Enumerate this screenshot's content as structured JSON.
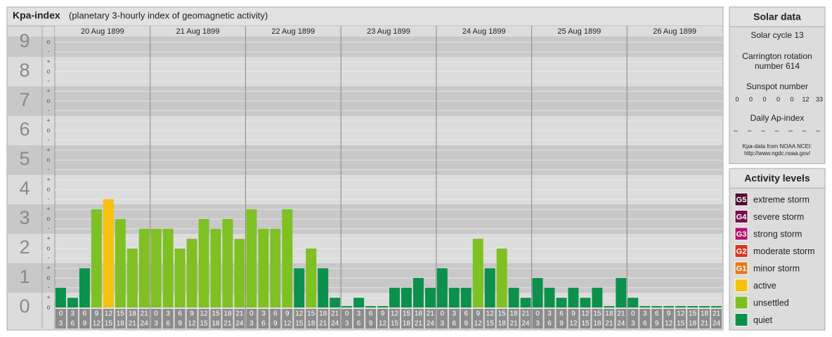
{
  "chart_data": {
    "type": "bar",
    "title": "Kpa-index",
    "subtitle": "(planetary 3-hourly index of geomagnetic activity)",
    "days": [
      "20 Aug 1899",
      "21 Aug 1899",
      "22 Aug 1899",
      "23 Aug 1899",
      "24 Aug 1899",
      "25 Aug 1899",
      "26 Aug 1899"
    ],
    "intervals": [
      [
        "0",
        "3"
      ],
      [
        "3",
        "6"
      ],
      [
        "6",
        "9"
      ],
      [
        "9",
        "12"
      ],
      [
        "12",
        "15"
      ],
      [
        "15",
        "18"
      ],
      [
        "18",
        "21"
      ],
      [
        "21",
        "24"
      ]
    ],
    "values": [
      0.67,
      0.33,
      1.33,
      3.33,
      3.67,
      3,
      2,
      2.67,
      2.67,
      2.67,
      2,
      2.33,
      3,
      2.67,
      3,
      2.33,
      3.33,
      2.67,
      2.67,
      3.33,
      1.33,
      2,
      1.33,
      0.33,
      0,
      0.33,
      0,
      0,
      0.67,
      0.67,
      1,
      0.67,
      1.33,
      0.67,
      0.67,
      2.33,
      1.33,
      2,
      0.67,
      0.33,
      1,
      0.67,
      0.33,
      0.67,
      0.33,
      0.67,
      0,
      1,
      0.33,
      0,
      0,
      0,
      0,
      0,
      0,
      0
    ],
    "levels": [
      "quiet",
      "quiet",
      "quiet",
      "unsettled",
      "active",
      "unsettled",
      "unsettled",
      "unsettled",
      "unsettled",
      "unsettled",
      "unsettled",
      "unsettled",
      "unsettled",
      "unsettled",
      "unsettled",
      "unsettled",
      "unsettled",
      "unsettled",
      "unsettled",
      "unsettled",
      "quiet",
      "unsettled",
      "quiet",
      "quiet",
      "quiet",
      "quiet",
      "quiet",
      "quiet",
      "quiet",
      "quiet",
      "quiet",
      "quiet",
      "quiet",
      "quiet",
      "quiet",
      "unsettled",
      "quiet",
      "unsettled",
      "quiet",
      "quiet",
      "quiet",
      "quiet",
      "quiet",
      "quiet",
      "quiet",
      "quiet",
      "quiet",
      "quiet",
      "quiet",
      "quiet",
      "quiet",
      "quiet",
      "quiet",
      "quiet",
      "quiet",
      "quiet"
    ],
    "ylim": [
      0,
      9.19
    ],
    "yticks": [
      0,
      1,
      2,
      3,
      4,
      5,
      6,
      7,
      8,
      9
    ],
    "minor_ticks": [
      {
        "value": 0,
        "label": "o"
      },
      {
        "value": 0.33,
        "label": "+"
      },
      {
        "value": 0.67,
        "label": "-"
      },
      {
        "value": 1,
        "label": "o"
      },
      {
        "value": 1.33,
        "label": "+"
      },
      {
        "value": 1.67,
        "label": "-"
      },
      {
        "value": 2,
        "label": "o"
      },
      {
        "value": 2.33,
        "label": "+"
      },
      {
        "value": 2.67,
        "label": "-"
      },
      {
        "value": 3,
        "label": "o"
      },
      {
        "value": 3.33,
        "label": "+"
      },
      {
        "value": 3.67,
        "label": "-"
      },
      {
        "value": 4,
        "label": "o"
      },
      {
        "value": 4.33,
        "label": "+"
      },
      {
        "value": 4.67,
        "label": "-"
      },
      {
        "value": 5,
        "label": "o"
      },
      {
        "value": 5.33,
        "label": "+"
      },
      {
        "value": 5.67,
        "label": "-"
      },
      {
        "value": 6,
        "label": "o"
      },
      {
        "value": 6.33,
        "label": "+"
      },
      {
        "value": 6.67,
        "label": "-"
      },
      {
        "value": 7,
        "label": "o"
      },
      {
        "value": 7.33,
        "label": "+"
      },
      {
        "value": 7.67,
        "label": "-"
      },
      {
        "value": 8,
        "label": "o"
      },
      {
        "value": 8.33,
        "label": "+"
      },
      {
        "value": 8.67,
        "label": "-"
      },
      {
        "value": 9,
        "label": "o"
      }
    ],
    "legend": {
      "title": "Activity levels",
      "items": [
        {
          "badge": "G5",
          "name": "extreme storm",
          "color": "#4b0a2e"
        },
        {
          "badge": "G4",
          "name": "severe storm",
          "color": "#7a0e4c"
        },
        {
          "badge": "G3",
          "name": "strong storm",
          "color": "#b5126b"
        },
        {
          "badge": "G2",
          "name": "moderate storm",
          "color": "#d6361e"
        },
        {
          "badge": "G1",
          "name": "minor storm",
          "color": "#e57a1c"
        },
        {
          "name": "active",
          "color": "#f6c10f"
        },
        {
          "name": "unsettled",
          "color": "#7fc022"
        },
        {
          "name": "quiet",
          "color": "#0c914c"
        }
      ]
    }
  },
  "solar": {
    "title": "Solar data",
    "cycle": "Solar cycle 13",
    "rotation": [
      "Carrington rotation",
      "number 614"
    ],
    "sunspot_title": "Sunspot number",
    "sunspots": [
      0,
      0,
      0,
      0,
      0,
      12,
      33
    ],
    "ap_title": "Daily Ap-index",
    "ap": [
      "–",
      "–",
      "–",
      "–",
      "–",
      "–",
      "–"
    ],
    "source": [
      "Kpa-data from NOAA NCEI:",
      "http://www.ngdc.noaa.gov/"
    ]
  }
}
